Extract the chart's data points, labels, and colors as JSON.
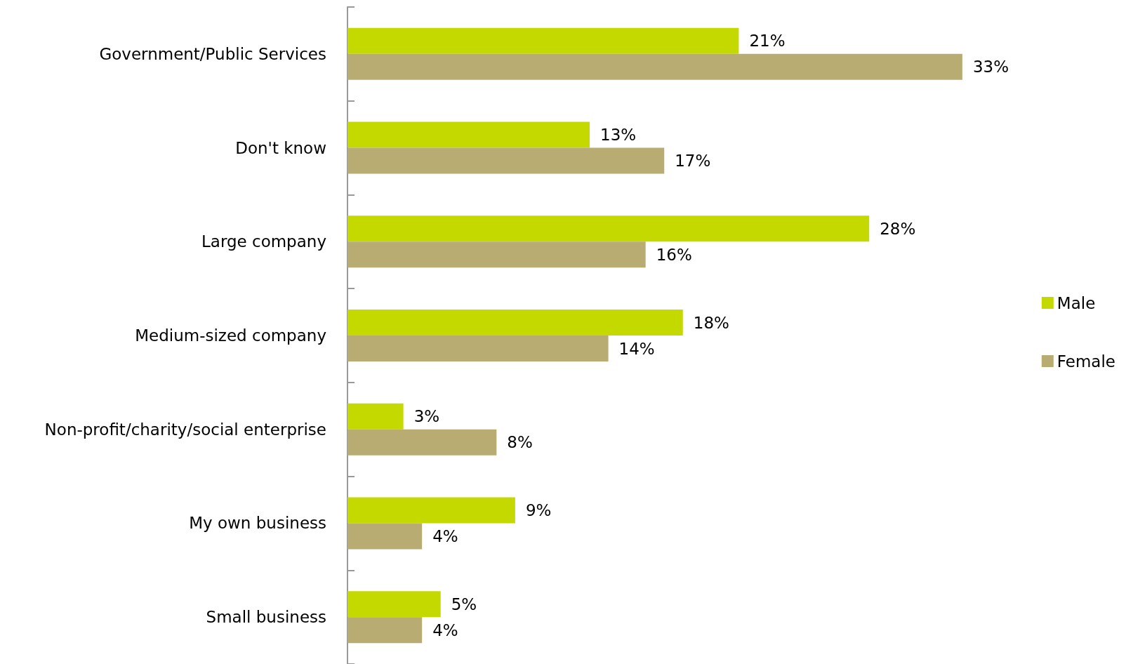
{
  "chart_data": {
    "type": "bar",
    "orientation": "horizontal",
    "categories": [
      "Government/Public Services",
      "Don't know",
      "Large company",
      "Medium-sized company",
      "Non-profit/charity/social enterprise",
      "My own business",
      "Small business"
    ],
    "series": [
      {
        "name": "Male",
        "color": "#c4d900",
        "values": [
          21,
          13,
          28,
          18,
          3,
          9,
          5
        ],
        "value_labels": [
          "21%",
          "13%",
          "28%",
          "18%",
          "3%",
          "9%",
          "5%"
        ]
      },
      {
        "name": "Female",
        "color": "#b8ac72",
        "values": [
          33,
          17,
          16,
          14,
          8,
          4,
          4
        ],
        "value_labels": [
          "33%",
          "17%",
          "16%",
          "14%",
          "8%",
          "4%",
          "4%"
        ]
      }
    ],
    "legend": "right",
    "grid": false
  }
}
